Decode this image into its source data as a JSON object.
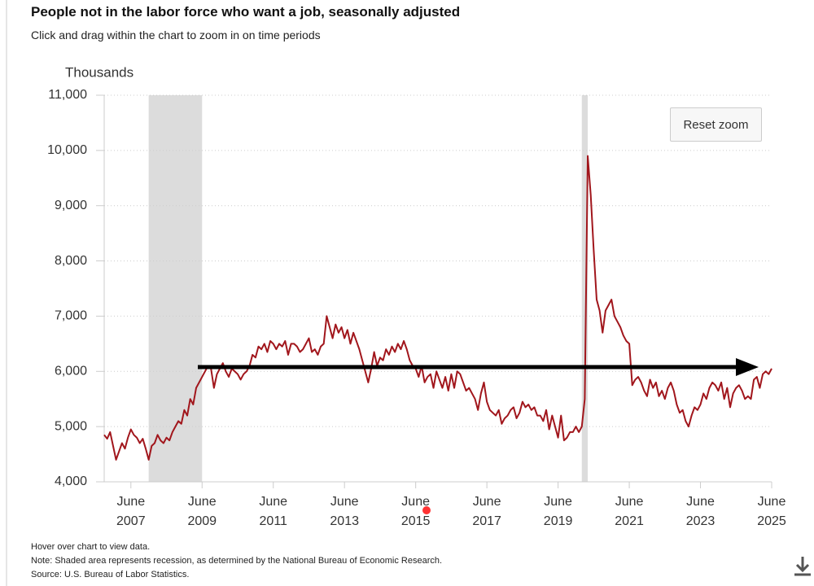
{
  "chart_data": {
    "type": "line",
    "title": "People not in the labor force who want a job, seasonally adjusted",
    "subtitle": "Click and drag within the chart to zoom in on time periods",
    "y_axis_label": "Thousands",
    "button": "Reset zoom",
    "notes": [
      "Hover over chart to view data.",
      "Note: Shaded area represents recession, as determined by the National Bureau of Economic Research.",
      "Source: U.S. Bureau of Labor Statistics."
    ],
    "color": "#a1161c",
    "grid": true,
    "ylim": [
      4000,
      11000
    ],
    "yticks": [
      {
        "value": 4000,
        "label": "4,000"
      },
      {
        "value": 5000,
        "label": "5,000"
      },
      {
        "value": 6000,
        "label": "6,000"
      },
      {
        "value": 7000,
        "label": "7,000"
      },
      {
        "value": 8000,
        "label": "8,000"
      },
      {
        "value": 9000,
        "label": "9,000"
      },
      {
        "value": 10000,
        "label": "10,000"
      },
      {
        "value": 11000,
        "label": "11,000"
      }
    ],
    "xlim": [
      "2006-09",
      "2025-06"
    ],
    "xticks": [
      {
        "value": "2007-06",
        "label": "June 2007"
      },
      {
        "value": "2009-06",
        "label": "June 2009"
      },
      {
        "value": "2011-06",
        "label": "June 2011"
      },
      {
        "value": "2013-06",
        "label": "June 2013"
      },
      {
        "value": "2015-06",
        "label": "June 2015"
      },
      {
        "value": "2017-06",
        "label": "June 2017"
      },
      {
        "value": "2019-06",
        "label": "June 2019"
      },
      {
        "value": "2021-06",
        "label": "June 2021"
      },
      {
        "value": "2023-06",
        "label": "June 2023"
      },
      {
        "value": "2025-06",
        "label": "June 2025"
      }
    ],
    "recessions": [
      {
        "start": "2007-12",
        "end": "2009-06"
      },
      {
        "start": "2020-02",
        "end": "2020-04"
      }
    ],
    "x": [
      "2006-09",
      "2006-10",
      "2006-11",
      "2006-12",
      "2007-01",
      "2007-02",
      "2007-03",
      "2007-04",
      "2007-05",
      "2007-06",
      "2007-07",
      "2007-08",
      "2007-09",
      "2007-10",
      "2007-11",
      "2007-12",
      "2008-01",
      "2008-02",
      "2008-03",
      "2008-04",
      "2008-05",
      "2008-06",
      "2008-07",
      "2008-08",
      "2008-09",
      "2008-10",
      "2008-11",
      "2008-12",
      "2009-01",
      "2009-02",
      "2009-03",
      "2009-04",
      "2009-05",
      "2009-06",
      "2009-07",
      "2009-08",
      "2009-09",
      "2009-10",
      "2009-11",
      "2009-12",
      "2010-01",
      "2010-02",
      "2010-03",
      "2010-04",
      "2010-05",
      "2010-06",
      "2010-07",
      "2010-08",
      "2010-09",
      "2010-10",
      "2010-11",
      "2010-12",
      "2011-01",
      "2011-02",
      "2011-03",
      "2011-04",
      "2011-05",
      "2011-06",
      "2011-07",
      "2011-08",
      "2011-09",
      "2011-10",
      "2011-11",
      "2011-12",
      "2012-01",
      "2012-02",
      "2012-03",
      "2012-04",
      "2012-05",
      "2012-06",
      "2012-07",
      "2012-08",
      "2012-09",
      "2012-10",
      "2012-11",
      "2012-12",
      "2013-01",
      "2013-02",
      "2013-03",
      "2013-04",
      "2013-05",
      "2013-06",
      "2013-07",
      "2013-08",
      "2013-09",
      "2013-10",
      "2013-11",
      "2013-12",
      "2014-01",
      "2014-02",
      "2014-03",
      "2014-04",
      "2014-05",
      "2014-06",
      "2014-07",
      "2014-08",
      "2014-09",
      "2014-10",
      "2014-11",
      "2014-12",
      "2015-01",
      "2015-02",
      "2015-03",
      "2015-04",
      "2015-05",
      "2015-06",
      "2015-07",
      "2015-08",
      "2015-09",
      "2015-10",
      "2015-11",
      "2015-12",
      "2016-01",
      "2016-02",
      "2016-03",
      "2016-04",
      "2016-05",
      "2016-06",
      "2016-07",
      "2016-08",
      "2016-09",
      "2016-10",
      "2016-11",
      "2016-12",
      "2017-01",
      "2017-02",
      "2017-03",
      "2017-04",
      "2017-05",
      "2017-06",
      "2017-07",
      "2017-08",
      "2017-09",
      "2017-10",
      "2017-11",
      "2017-12",
      "2018-01",
      "2018-02",
      "2018-03",
      "2018-04",
      "2018-05",
      "2018-06",
      "2018-07",
      "2018-08",
      "2018-09",
      "2018-10",
      "2018-11",
      "2018-12",
      "2019-01",
      "2019-02",
      "2019-03",
      "2019-04",
      "2019-05",
      "2019-06",
      "2019-07",
      "2019-08",
      "2019-09",
      "2019-10",
      "2019-11",
      "2019-12",
      "2020-01",
      "2020-02",
      "2020-03",
      "2020-04",
      "2020-05",
      "2020-06",
      "2020-07",
      "2020-08",
      "2020-09",
      "2020-10",
      "2020-11",
      "2020-12",
      "2021-01",
      "2021-02",
      "2021-03",
      "2021-04",
      "2021-05",
      "2021-06",
      "2021-07",
      "2021-08",
      "2021-09",
      "2021-10",
      "2021-11",
      "2021-12",
      "2022-01",
      "2022-02",
      "2022-03",
      "2022-04",
      "2022-05",
      "2022-06",
      "2022-07",
      "2022-08",
      "2022-09",
      "2022-10",
      "2022-11",
      "2022-12",
      "2023-01",
      "2023-02",
      "2023-03",
      "2023-04",
      "2023-05",
      "2023-06",
      "2023-07",
      "2023-08",
      "2023-09",
      "2023-10",
      "2023-11",
      "2023-12",
      "2024-01",
      "2024-02",
      "2024-03",
      "2024-04",
      "2024-05",
      "2024-06",
      "2024-07",
      "2024-08",
      "2024-09",
      "2024-10",
      "2024-11",
      "2024-12",
      "2025-01",
      "2025-02",
      "2025-03",
      "2025-04",
      "2025-05",
      "2025-06"
    ],
    "values": [
      4850,
      4780,
      4900,
      4650,
      4400,
      4550,
      4700,
      4600,
      4800,
      4950,
      4850,
      4800,
      4700,
      4780,
      4600,
      4400,
      4650,
      4700,
      4850,
      4750,
      4700,
      4800,
      4750,
      4900,
      5000,
      5100,
      5050,
      5300,
      5200,
      5500,
      5400,
      5700,
      5800,
      5900,
      6000,
      6100,
      6050,
      5700,
      5950,
      6050,
      6150,
      6000,
      5900,
      6050,
      6000,
      5950,
      5850,
      5950,
      6000,
      6100,
      6300,
      6250,
      6450,
      6400,
      6500,
      6350,
      6550,
      6500,
      6400,
      6500,
      6450,
      6550,
      6300,
      6500,
      6500,
      6450,
      6350,
      6400,
      6500,
      6600,
      6350,
      6400,
      6300,
      6450,
      6500,
      7000,
      6800,
      6600,
      6850,
      6700,
      6800,
      6600,
      6750,
      6500,
      6700,
      6550,
      6400,
      6200,
      6000,
      5800,
      6050,
      6350,
      6100,
      6250,
      6200,
      6400,
      6300,
      6450,
      6350,
      6500,
      6400,
      6550,
      6400,
      6200,
      6100,
      6050,
      5900,
      6100,
      5800,
      5900,
      5950,
      5700,
      6000,
      5850,
      5700,
      5900,
      5650,
      5950,
      5700,
      6000,
      5950,
      5800,
      5650,
      5700,
      5600,
      5500,
      5300,
      5600,
      5800,
      5450,
      5300,
      5250,
      5200,
      5300,
      5050,
      5150,
      5200,
      5300,
      5350,
      5150,
      5250,
      5450,
      5350,
      5400,
      5300,
      5350,
      5200,
      5200,
      5100,
      5300,
      4950,
      5200,
      5000,
      4800,
      5200,
      4750,
      4800,
      4900,
      4900,
      5000,
      4900,
      5000,
      5500,
      9900,
      9200,
      8200,
      7300,
      7100,
      6700,
      7100,
      7200,
      7300,
      7000,
      6900,
      6800,
      6650,
      6550,
      6500,
      5750,
      5850,
      5900,
      5800,
      5650,
      5550,
      5850,
      5700,
      5800,
      5550,
      5650,
      5500,
      5700,
      5800,
      5650,
      5400,
      5250,
      5300,
      5100,
      5000,
      5200,
      5350,
      5300,
      5400,
      5600,
      5500,
      5700,
      5800,
      5750,
      5650,
      5800,
      5500,
      5700,
      5350,
      5600,
      5700,
      5750,
      5650,
      5500,
      5550,
      5500,
      5850,
      5900,
      5700,
      5950,
      6000,
      5950,
      6050
    ]
  }
}
